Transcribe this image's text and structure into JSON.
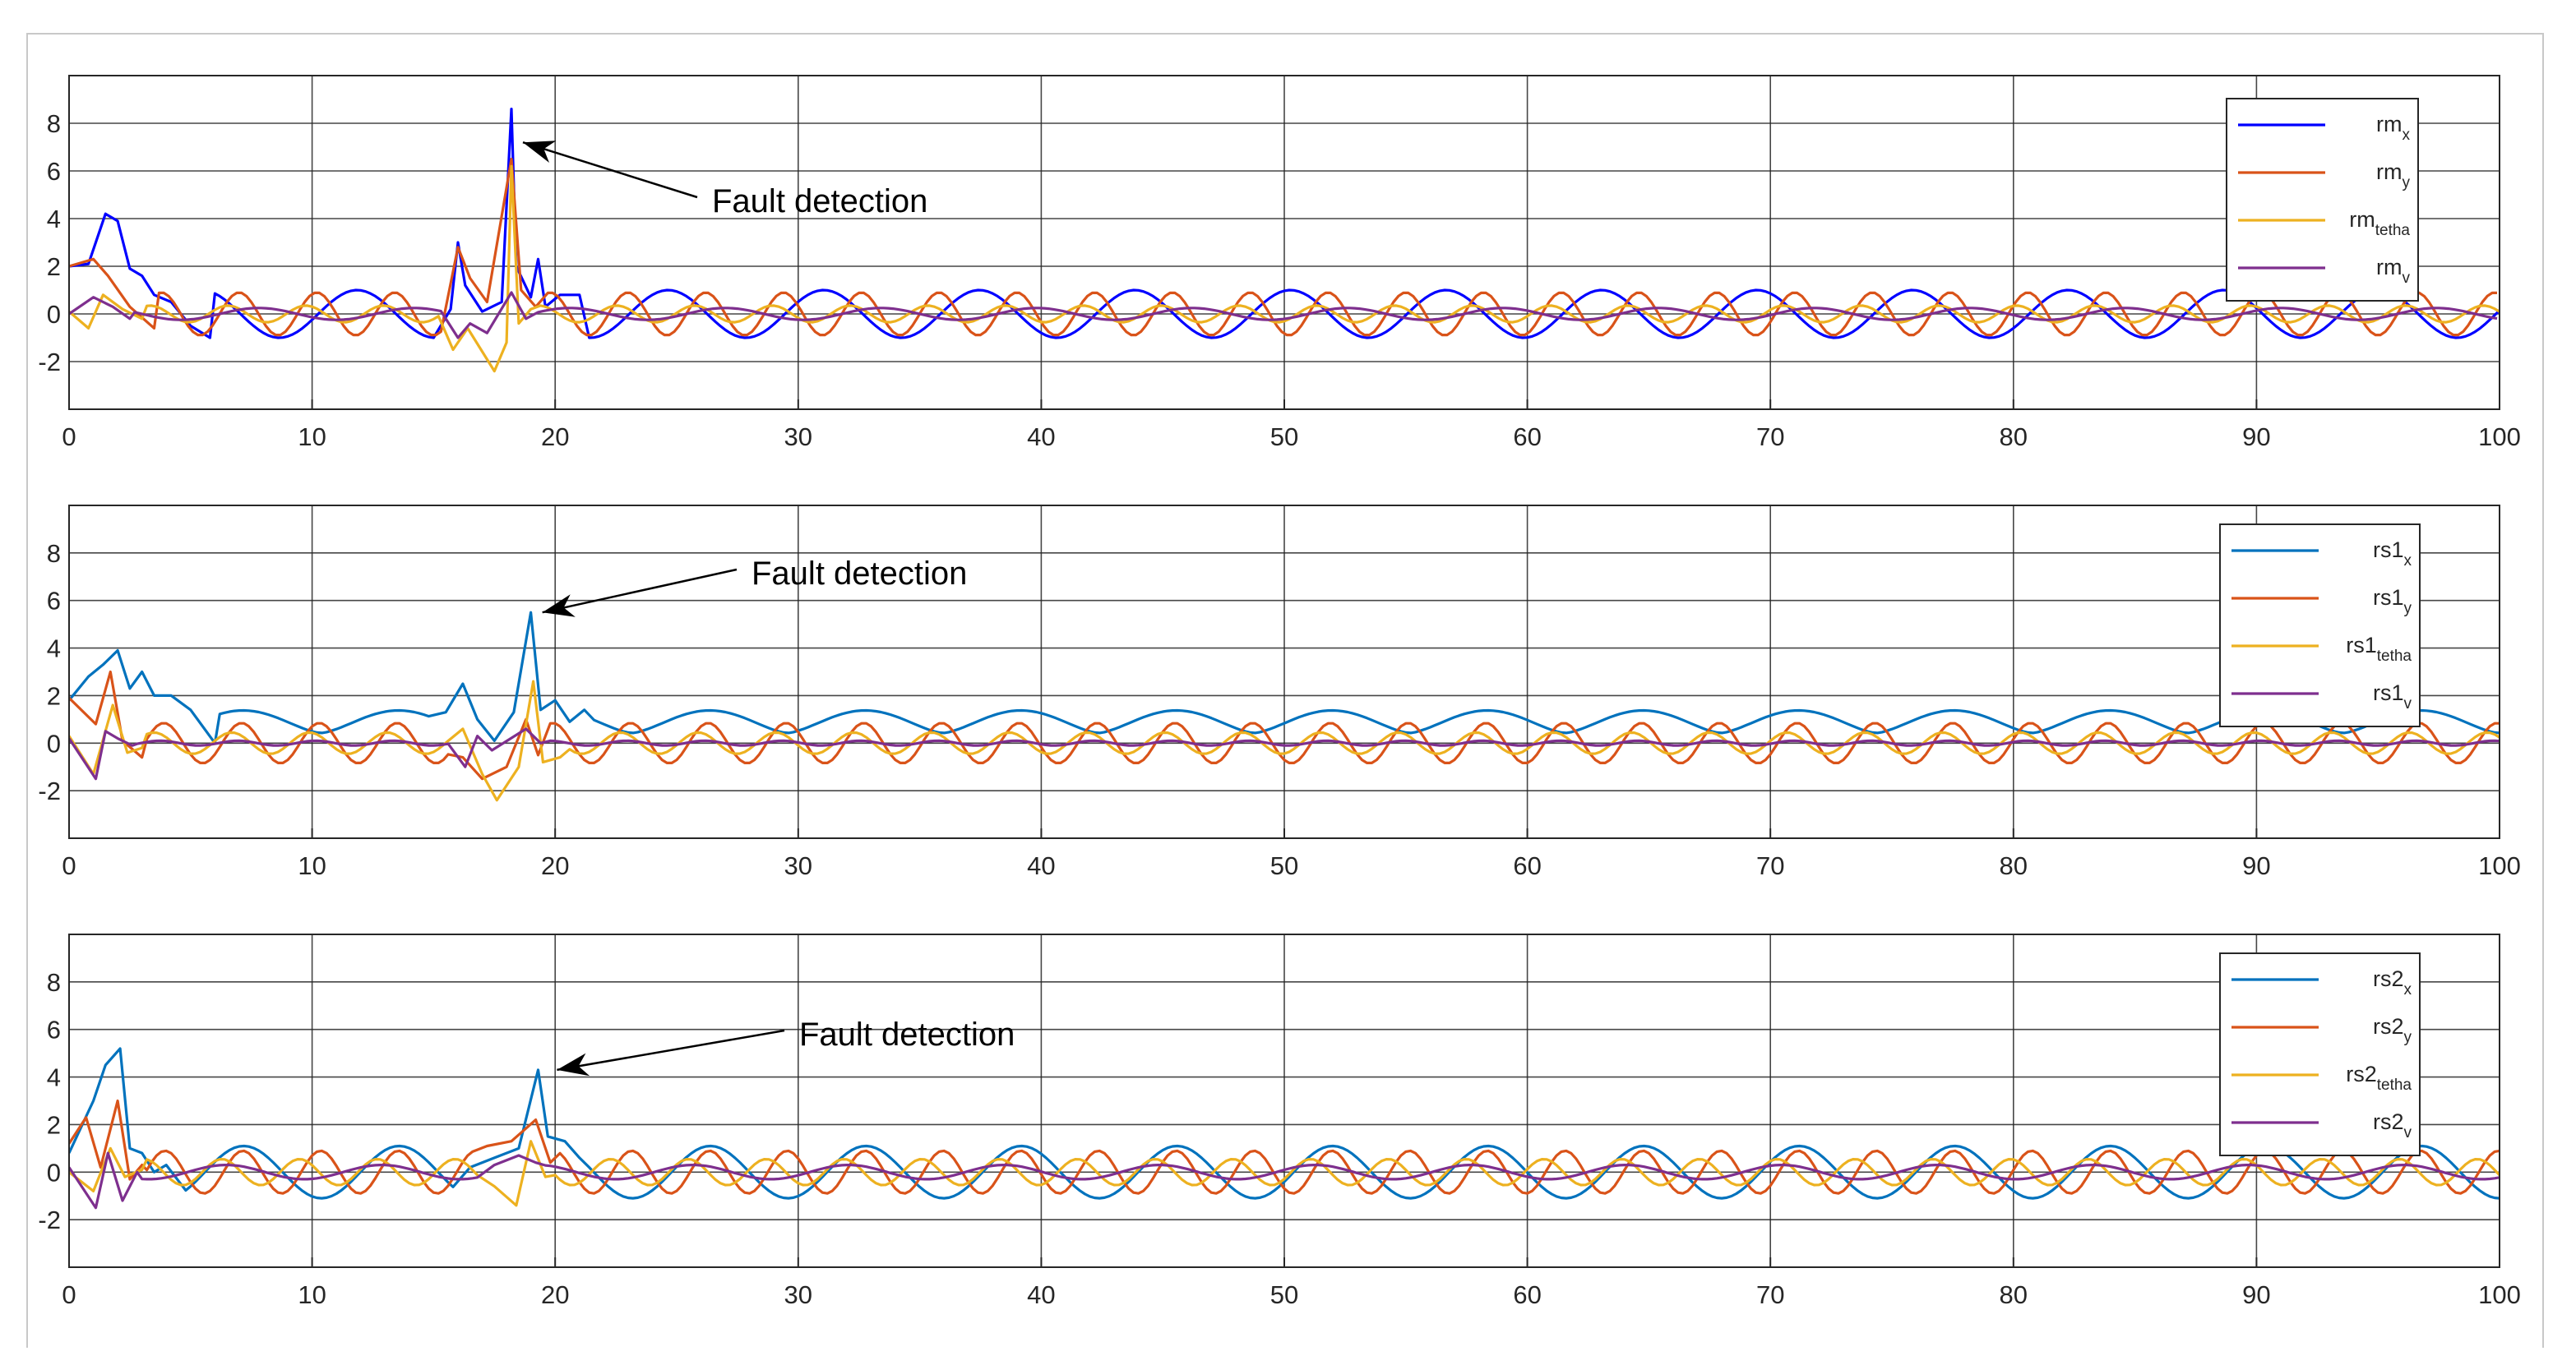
{
  "colors": {
    "blue_dark": "#0000ff",
    "blue": "#0072bd",
    "orange": "#d95319",
    "yellow": "#edb120",
    "purple": "#7e2f8e",
    "grid": "#262626"
  },
  "chart_data": [
    {
      "type": "line",
      "xlim": [
        0,
        100
      ],
      "ylim": [
        -4,
        10
      ],
      "xticks": [
        0,
        10,
        20,
        30,
        40,
        50,
        60,
        70,
        80,
        90,
        100
      ],
      "yticks": [
        -2,
        0,
        2,
        4,
        6,
        8
      ],
      "grid": true,
      "legend_position": "top-right",
      "annotation": {
        "text": "Fault detection",
        "points_to": [
          18.2,
          7.2
        ]
      },
      "series": [
        {
          "base": "rm",
          "sub": "x",
          "color": "#0000ff",
          "points": [
            [
              0,
              2.0
            ],
            [
              0.8,
              2.1
            ],
            [
              1.5,
              4.2
            ],
            [
              2,
              3.9
            ],
            [
              2.5,
              1.9
            ],
            [
              3,
              1.6
            ],
            [
              3.5,
              0.8
            ],
            [
              4.2,
              0.5
            ],
            [
              5,
              -0.5
            ],
            [
              5.8,
              -1.0
            ]
          ],
          "osc": {
            "amp": 1.0,
            "period": 6.4,
            "phase": 2.5
          },
          "spikes": [
            [
              15.7,
              0.2
            ],
            [
              16,
              3.0
            ],
            [
              16.3,
              1.2
            ],
            [
              17,
              0.1
            ],
            [
              17.8,
              0.5
            ],
            [
              18.2,
              8.6
            ],
            [
              18.4,
              2.0
            ],
            [
              19,
              0.7
            ],
            [
              19.3,
              2.3
            ],
            [
              19.6,
              0.3
            ],
            [
              20.2,
              0.8
            ],
            [
              21,
              0.8
            ]
          ]
        },
        {
          "base": "rm",
          "sub": "y",
          "color": "#d95319",
          "points": [
            [
              0,
              2.0
            ],
            [
              1,
              2.3
            ],
            [
              1.6,
              1.6
            ],
            [
              2.5,
              0.3
            ],
            [
              3.5,
              -0.6
            ]
          ],
          "osc": {
            "amp": 0.9,
            "period": 3.2,
            "phase": 0.4
          },
          "spikes": [
            [
              16,
              2.8
            ],
            [
              16.5,
              1.5
            ],
            [
              17.2,
              0.5
            ],
            [
              18.2,
              6.5
            ],
            [
              18.6,
              1.0
            ],
            [
              19.2,
              0.3
            ]
          ]
        },
        {
          "base": "rm",
          "sub": "tetha",
          "color": "#edb120",
          "points": [
            [
              0,
              0.1
            ],
            [
              0.8,
              -0.6
            ],
            [
              1.4,
              0.8
            ],
            [
              2.2,
              0.2
            ],
            [
              3,
              -0.2
            ]
          ],
          "osc": {
            "amp": 0.35,
            "period": 3.2,
            "phase": 1.3
          },
          "spikes": [
            [
              15.8,
              -1.5
            ],
            [
              16.4,
              -0.6
            ],
            [
              17.5,
              -2.4
            ],
            [
              18,
              -1.2
            ],
            [
              18.2,
              6.2
            ],
            [
              18.5,
              -0.4
            ],
            [
              19,
              0.2
            ]
          ]
        },
        {
          "base": "rm",
          "sub": "v",
          "color": "#7e2f8e",
          "points": [
            [
              0,
              0.0
            ],
            [
              1,
              0.7
            ],
            [
              1.8,
              0.3
            ],
            [
              2.5,
              -0.2
            ]
          ],
          "osc": {
            "amp": 0.25,
            "period": 6.4,
            "phase": 0.2
          },
          "spikes": [
            [
              16,
              -1.0
            ],
            [
              16.5,
              -0.4
            ],
            [
              17.2,
              -0.8
            ],
            [
              18.2,
              0.9
            ],
            [
              18.8,
              -0.2
            ]
          ]
        }
      ]
    },
    {
      "type": "line",
      "xlim": [
        0,
        100
      ],
      "ylim": [
        -4,
        10
      ],
      "xticks": [
        0,
        10,
        20,
        30,
        40,
        50,
        60,
        70,
        80,
        90,
        100
      ],
      "yticks": [
        -2,
        0,
        2,
        4,
        6,
        8
      ],
      "grid": true,
      "legend_position": "top-right",
      "annotation": {
        "text": "Fault detection",
        "points_to": [
          19.0,
          5.5
        ]
      },
      "series": [
        {
          "base": "rs1",
          "sub": "x",
          "color": "#0072bd",
          "points": [
            [
              0,
              1.8
            ],
            [
              0.8,
              2.8
            ],
            [
              1.4,
              3.3
            ],
            [
              2,
              3.9
            ],
            [
              2.5,
              2.3
            ],
            [
              3,
              3.0
            ],
            [
              3.5,
              2.0
            ],
            [
              4.2,
              2.0
            ],
            [
              5,
              1.4
            ],
            [
              6,
              0.0
            ]
          ],
          "osc": {
            "amp": 0.95,
            "period": 6.4,
            "phase": 1.2,
            "offset": 0.9
          },
          "spikes": [
            [
              15.5,
              1.3
            ],
            [
              16.2,
              2.5
            ],
            [
              16.8,
              1.0
            ],
            [
              17.5,
              0.1
            ],
            [
              18.3,
              1.3
            ],
            [
              19.0,
              5.5
            ],
            [
              19.4,
              1.4
            ],
            [
              20,
              1.8
            ],
            [
              20.6,
              0.9
            ],
            [
              21.2,
              1.4
            ]
          ]
        },
        {
          "base": "rs1",
          "sub": "y",
          "color": "#d95319",
          "points": [
            [
              0,
              1.9
            ],
            [
              1.1,
              0.8
            ],
            [
              1.7,
              3.0
            ],
            [
              2.2,
              0.1
            ],
            [
              3,
              -0.6
            ]
          ],
          "osc": {
            "amp": 0.85,
            "period": 3.2,
            "phase": 0.2
          },
          "spikes": [
            [
              16.2,
              -0.6
            ],
            [
              17,
              -1.5
            ],
            [
              18,
              -1.0
            ],
            [
              18.8,
              1.0
            ],
            [
              19.3,
              -0.5
            ]
          ]
        },
        {
          "base": "rs1",
          "sub": "tetha",
          "color": "#edb120",
          "points": [
            [
              0,
              0.3
            ],
            [
              1,
              -1.3
            ],
            [
              1.8,
              1.6
            ],
            [
              2.4,
              -0.4
            ],
            [
              3,
              -0.2
            ]
          ],
          "osc": {
            "amp": 0.45,
            "period": 3.2,
            "phase": 1.0
          },
          "spikes": [
            [
              16.2,
              0.6
            ],
            [
              17,
              -1.3
            ],
            [
              17.6,
              -2.4
            ],
            [
              18.5,
              -1.0
            ],
            [
              19.1,
              2.6
            ],
            [
              19.5,
              -0.8
            ],
            [
              20.2,
              -0.6
            ]
          ]
        },
        {
          "base": "rs1",
          "sub": "v",
          "color": "#7e2f8e",
          "points": [
            [
              0,
              0.2
            ],
            [
              1.1,
              -1.5
            ],
            [
              1.5,
              0.5
            ],
            [
              2,
              0.2
            ],
            [
              2.6,
              -0.1
            ]
          ],
          "osc": {
            "amp": 0.1,
            "period": 3.2,
            "phase": 0.5
          },
          "spikes": [
            [
              16.3,
              -1.0
            ],
            [
              16.8,
              0.3
            ],
            [
              17.4,
              -0.3
            ],
            [
              18.8,
              0.6
            ],
            [
              19.4,
              0.0
            ]
          ]
        }
      ]
    },
    {
      "type": "line",
      "xlim": [
        0,
        100
      ],
      "ylim": [
        -4,
        10
      ],
      "xticks": [
        0,
        10,
        20,
        30,
        40,
        50,
        60,
        70,
        80,
        90,
        100
      ],
      "yticks": [
        -2,
        0,
        2,
        4,
        6,
        8
      ],
      "grid": true,
      "legend_position": "top-right",
      "annotation": {
        "text": "Fault detection",
        "points_to": [
          19.6,
          4.3
        ]
      },
      "series": [
        {
          "base": "rs2",
          "sub": "x",
          "color": "#0072bd",
          "points": [
            [
              0,
              0.8
            ],
            [
              1,
              3.0
            ],
            [
              1.5,
              4.5
            ],
            [
              2.1,
              5.2
            ],
            [
              2.5,
              1.0
            ],
            [
              3,
              0.8
            ],
            [
              3.5,
              0.0
            ],
            [
              4,
              0.3
            ],
            [
              4.6,
              -0.5
            ]
          ],
          "osc": {
            "amp": 1.1,
            "period": 6.4,
            "phase": 0.8
          },
          "spikes": [
            [
              16.5,
              0.2
            ],
            [
              17.5,
              0.6
            ],
            [
              18.5,
              1.0
            ],
            [
              19.3,
              4.3
            ],
            [
              19.7,
              1.5
            ],
            [
              20.4,
              1.3
            ],
            [
              21,
              0.6
            ]
          ]
        },
        {
          "base": "rs2",
          "sub": "y",
          "color": "#d95319",
          "points": [
            [
              0,
              1.2
            ],
            [
              0.7,
              2.3
            ],
            [
              1.3,
              0.2
            ],
            [
              2,
              3.0
            ],
            [
              2.5,
              -0.3
            ],
            [
              3,
              0.3
            ]
          ],
          "osc": {
            "amp": 0.9,
            "period": 3.2,
            "phase": 0.1
          },
          "spikes": [
            [
              17.2,
              1.1
            ],
            [
              18.2,
              1.3
            ],
            [
              19.2,
              2.2
            ],
            [
              19.8,
              0.4
            ]
          ]
        },
        {
          "base": "rs2",
          "sub": "tetha",
          "color": "#edb120",
          "points": [
            [
              0,
              0.0
            ],
            [
              1,
              -0.8
            ],
            [
              1.7,
              1.0
            ],
            [
              2.3,
              -0.2
            ],
            [
              3,
              0.1
            ]
          ],
          "osc": {
            "amp": 0.55,
            "period": 3.2,
            "phase": 1.8
          },
          "spikes": [
            [
              17.5,
              -0.6
            ],
            [
              18.4,
              -1.4
            ],
            [
              19.0,
              1.3
            ],
            [
              19.6,
              -0.2
            ]
          ]
        },
        {
          "base": "rs2",
          "sub": "v",
          "color": "#7e2f8e",
          "points": [
            [
              0,
              0.2
            ],
            [
              1.1,
              -1.5
            ],
            [
              1.6,
              0.8
            ],
            [
              2.2,
              -1.2
            ],
            [
              2.8,
              0.0
            ]
          ],
          "osc": {
            "amp": 0.3,
            "period": 6.4,
            "phase": 1.5
          },
          "spikes": [
            [
              17.5,
              0.3
            ],
            [
              18.5,
              0.7
            ],
            [
              19.2,
              0.4
            ]
          ]
        }
      ]
    }
  ]
}
